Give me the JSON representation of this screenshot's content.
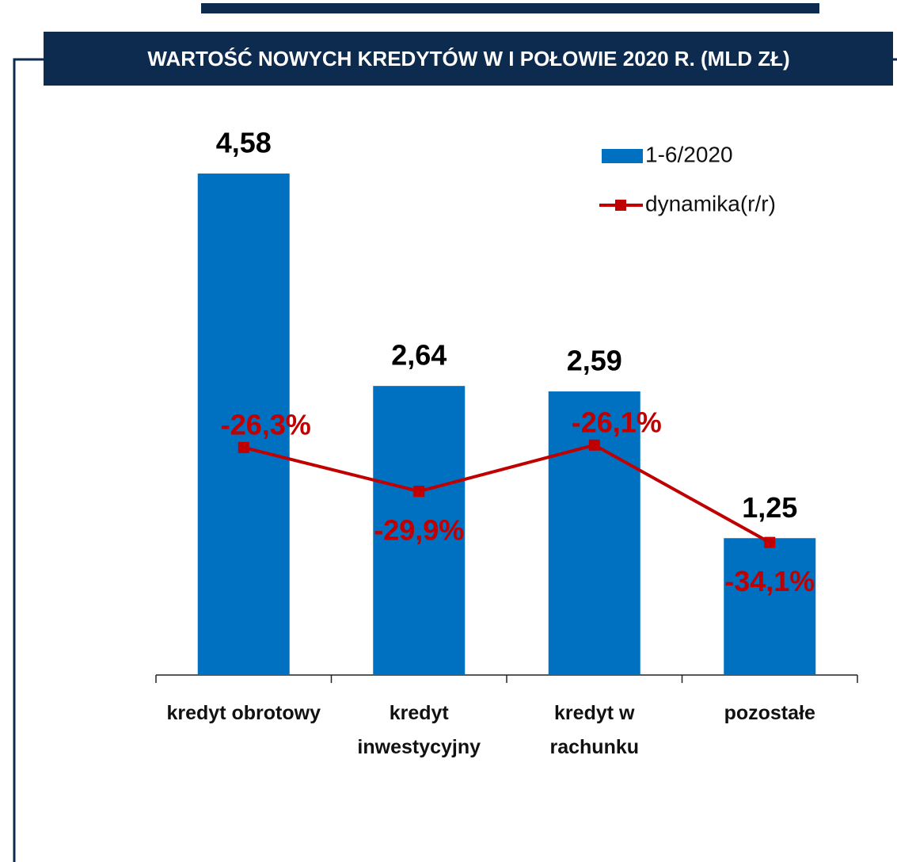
{
  "chart_data": {
    "type": "bar_line",
    "title": "WARTOŚĆ NOWYCH KREDYTÓW W I POŁOWIE 2020 R. (MLD ZŁ)",
    "categories": [
      "kredyt obrotowy",
      "kredyt inwestycyjny",
      "kredyt w rachunku",
      "pozostałe"
    ],
    "series": [
      {
        "name": "1-6/2020",
        "type": "bar",
        "color": "#0070c0",
        "values": [
          4.58,
          2.64,
          2.59,
          1.25
        ],
        "value_labels": [
          "4,58",
          "2,64",
          "2,59",
          "1,25"
        ]
      },
      {
        "name": "dynamika(r/r)",
        "type": "line",
        "axis": "y2",
        "color": "#c00000",
        "values": [
          -26.3,
          -29.9,
          -26.1,
          -34.1
        ],
        "value_labels": [
          "-26,3%",
          "-29,9%",
          "-26,1%",
          "-34,1%"
        ]
      }
    ],
    "ylim": [
      0,
      5
    ],
    "y2lim": [
      -45,
      0
    ],
    "legend": "top-right"
  }
}
